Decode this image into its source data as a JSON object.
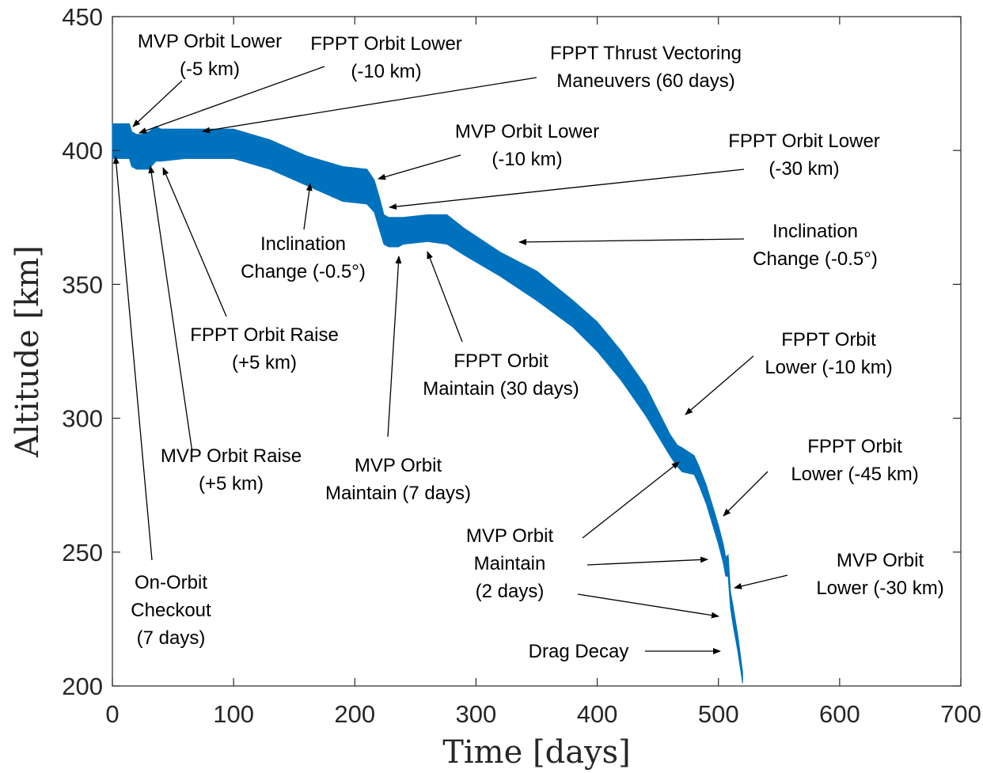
{
  "colors": {
    "band": "#0072BD",
    "axis": "#262626",
    "annotation": "#000000",
    "background": "#ffffff"
  },
  "chart_data": {
    "type": "area",
    "title": "",
    "xlabel": "Time [days]",
    "ylabel": "Altitude [km]",
    "xlim": [
      0,
      700
    ],
    "ylim": [
      200,
      450
    ],
    "xticks": [
      0,
      100,
      200,
      300,
      400,
      500,
      600,
      700
    ],
    "yticks": [
      200,
      250,
      300,
      350,
      400,
      450
    ],
    "grid": false,
    "legend": "none",
    "series": [
      {
        "x": [
          0,
          14,
          16,
          20,
          24,
          30,
          36,
          40,
          60,
          100,
          130,
          160,
          190,
          210,
          216,
          220,
          224,
          228,
          232,
          236,
          240,
          260,
          276,
          290,
          320,
          350,
          380,
          400,
          420,
          440,
          460,
          466,
          470,
          480,
          484,
          490,
          496,
          500,
          504,
          506,
          508,
          510,
          512,
          516,
          520
        ],
        "y_low": [
          397,
          397,
          394,
          393,
          393,
          393,
          396,
          396,
          397,
          397,
          393,
          387,
          381,
          380,
          377,
          371,
          365,
          364,
          364,
          364,
          365,
          366,
          365,
          361,
          353,
          344,
          334,
          325,
          314,
          301,
          286,
          282,
          280,
          279,
          275,
          268,
          259,
          253,
          246,
          241,
          241,
          229,
          223,
          213,
          201
        ],
        "y_high": [
          410,
          410,
          407,
          406,
          406,
          407,
          409,
          408,
          408,
          408,
          404,
          398,
          394,
          393,
          389,
          383,
          376,
          375,
          375,
          375,
          375,
          376,
          376,
          371,
          362,
          355,
          344,
          336,
          325,
          312,
          294,
          290,
          289,
          286,
          282,
          275,
          266,
          260,
          253,
          248,
          249,
          235,
          230,
          219,
          205
        ]
      }
    ],
    "annotations": [
      {
        "lines": [
          "MVP Orbit Lower",
          "(-5 km)"
        ]
      },
      {
        "lines": [
          "FPPT Orbit Lower",
          "(-10 km)"
        ]
      },
      {
        "lines": [
          "FPPT Thrust Vectoring",
          "Maneuvers (60 days)"
        ]
      },
      {
        "lines": [
          "MVP Orbit Lower",
          "(-10 km)"
        ]
      },
      {
        "lines": [
          "FPPT Orbit Lower",
          "(-30 km)"
        ]
      },
      {
        "lines": [
          "Inclination",
          "Change (-0.5°)"
        ]
      },
      {
        "lines": [
          "Inclination",
          "Change (-0.5°)"
        ]
      },
      {
        "lines": [
          "FPPT Orbit Raise",
          "(+5 km)"
        ]
      },
      {
        "lines": [
          "FPPT Orbit",
          "Maintain (30 days)"
        ]
      },
      {
        "lines": [
          "FPPT Orbit",
          "Lower (-10 km)"
        ]
      },
      {
        "lines": [
          "MVP Orbit Raise",
          "(+5 km)"
        ]
      },
      {
        "lines": [
          "MVP Orbit",
          "Maintain (7 days)"
        ]
      },
      {
        "lines": [
          "FPPT Orbit",
          "Lower (-45 km)"
        ]
      },
      {
        "lines": [
          "MVP Orbit",
          "Maintain",
          "(2 days)"
        ]
      },
      {
        "lines": [
          "MVP Orbit",
          "Lower (-30 km)"
        ]
      },
      {
        "lines": [
          "On-Orbit",
          "Checkout",
          "(7 days)"
        ]
      },
      {
        "lines": [
          "Drag Decay"
        ]
      }
    ]
  }
}
